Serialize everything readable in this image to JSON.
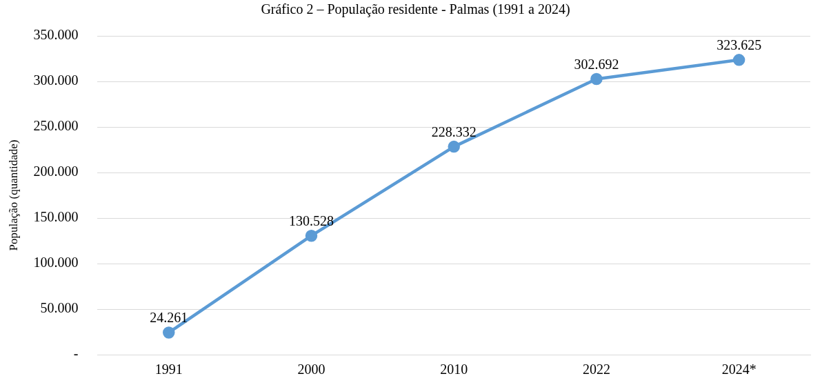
{
  "chart_data": {
    "type": "line",
    "title": "Gráfico 2 – População residente - Palmas (1991 a 2024)",
    "ylabel": "População (quantidade)",
    "categories": [
      "1991",
      "2000",
      "2010",
      "2022",
      "2024*"
    ],
    "series": [
      {
        "color": "#5b9bd5",
        "values": [
          24261,
          130528,
          228332,
          302692,
          323625
        ]
      }
    ],
    "value_labels": [
      "24.261",
      "130.528",
      "228.332",
      "302.692",
      "323.625"
    ],
    "ylim": [
      0,
      350000
    ],
    "yticks": [
      {
        "value": 0,
        "label": "-"
      },
      {
        "value": 50000,
        "label": "50.000"
      },
      {
        "value": 100000,
        "label": "100.000"
      },
      {
        "value": 150000,
        "label": "150.000"
      },
      {
        "value": 200000,
        "label": "200.000"
      },
      {
        "value": 250000,
        "label": "250.000"
      },
      {
        "value": 300000,
        "label": "300.000"
      },
      {
        "value": 350000,
        "label": "350.000"
      }
    ],
    "grid": "y",
    "legend": false,
    "marker": "circle",
    "line_style": "solid"
  }
}
